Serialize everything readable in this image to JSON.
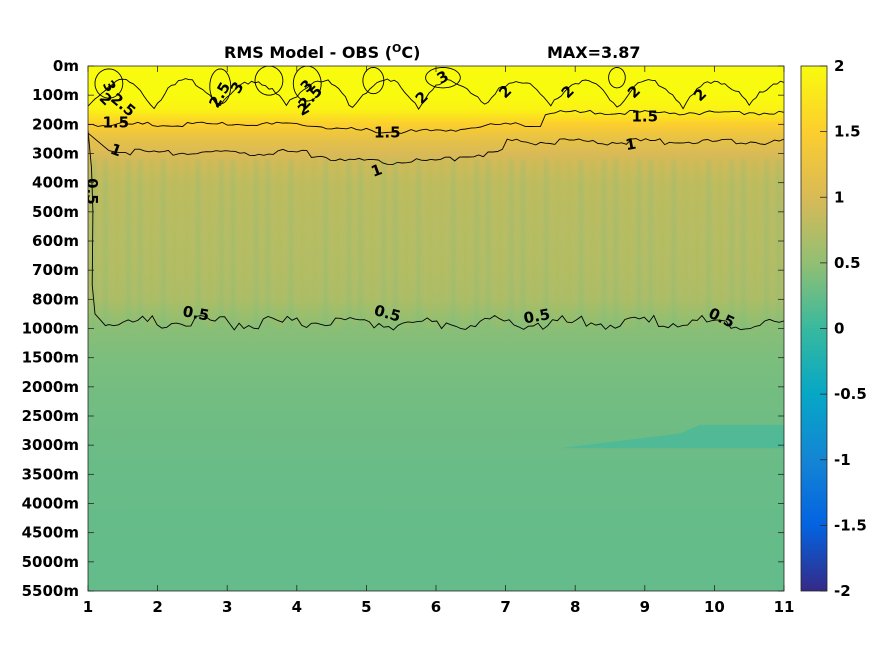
{
  "chart_data": {
    "type": "heatmap",
    "title_prefix": "RMS Model - OBS (",
    "title_unit_sup": "O",
    "title_unit": "C)",
    "title_max": "MAX=3.87",
    "x": {
      "ticks": [
        1,
        2,
        3,
        4,
        5,
        6,
        7,
        8,
        9,
        10,
        11
      ],
      "range": [
        1,
        11
      ]
    },
    "y": {
      "ticks": [
        "0m",
        "100m",
        "200m",
        "300m",
        "400m",
        "500m",
        "600m",
        "700m",
        "800m",
        "1000m",
        "1500m",
        "2000m",
        "2500m",
        "3000m",
        "3500m",
        "4000m",
        "4500m",
        "5000m",
        "5500m"
      ],
      "depths_m": [
        0,
        100,
        200,
        300,
        400,
        500,
        600,
        700,
        800,
        1000,
        1500,
        2000,
        2500,
        3000,
        3500,
        4000,
        4500,
        5000,
        5500
      ],
      "reversed": true
    },
    "colorbar": {
      "range": [
        -2,
        2
      ],
      "ticks": [
        2,
        1.5,
        1,
        0.5,
        0,
        -0.5,
        -1,
        -1.5,
        -2
      ],
      "tick_labels": [
        "2",
        "1.5",
        "1",
        "0.5",
        "0",
        "-0.5",
        "-1",
        "-1.5",
        "-2"
      ],
      "colormap": "parula"
    },
    "rms_profile": {
      "depth_index": [
        0,
        1,
        1.5,
        2,
        2.5,
        3,
        4,
        5,
        6,
        7,
        8,
        8.5,
        9,
        10,
        11,
        12,
        13,
        14,
        15,
        16,
        17,
        18
      ],
      "value": [
        2.8,
        2.3,
        1.9,
        1.5,
        1.2,
        1.0,
        0.82,
        0.78,
        0.75,
        0.73,
        0.68,
        0.55,
        0.45,
        0.38,
        0.34,
        0.31,
        0.29,
        0.27,
        0.26,
        0.25,
        0.24,
        0.24
      ]
    },
    "contour_levels": [
      0.5,
      1,
      1.5,
      2,
      2.5,
      3
    ],
    "contour_labels": [
      {
        "text": "3",
        "x": 1.3,
        "y": 0.7,
        "rot": 60
      },
      {
        "text": "2",
        "x": 1.25,
        "y": 1.15,
        "rot": 45
      },
      {
        "text": "2.5",
        "x": 1.5,
        "y": 1.35,
        "rot": 40
      },
      {
        "text": "1.5",
        "x": 1.4,
        "y": 1.95,
        "rot": 0
      },
      {
        "text": "1",
        "x": 1.4,
        "y": 2.9,
        "rot": 20
      },
      {
        "text": "0.5",
        "x": 1.05,
        "y": 4.3,
        "rot": 90
      },
      {
        "text": "2.5",
        "x": 2.9,
        "y": 1.0,
        "rot": -60
      },
      {
        "text": "3",
        "x": 3.15,
        "y": 0.75,
        "rot": -60
      },
      {
        "text": "2.5",
        "x": 4.2,
        "y": 1.1,
        "rot": -45
      },
      {
        "text": "3",
        "x": 4.15,
        "y": 0.7,
        "rot": -45
      },
      {
        "text": "2",
        "x": 4.1,
        "y": 1.5,
        "rot": -30
      },
      {
        "text": "3",
        "x": 6.1,
        "y": 0.4,
        "rot": -30
      },
      {
        "text": "2",
        "x": 5.8,
        "y": 1.1,
        "rot": -45
      },
      {
        "text": "2",
        "x": 7.0,
        "y": 0.9,
        "rot": -45
      },
      {
        "text": "2",
        "x": 7.9,
        "y": 0.9,
        "rot": -45
      },
      {
        "text": "2",
        "x": 8.85,
        "y": 0.9,
        "rot": -45
      },
      {
        "text": "2",
        "x": 9.8,
        "y": 1.0,
        "rot": -45
      },
      {
        "text": "1.5",
        "x": 5.3,
        "y": 2.3,
        "rot": 0
      },
      {
        "text": "1.5",
        "x": 9.0,
        "y": 1.75,
        "rot": 0
      },
      {
        "text": "1",
        "x": 5.15,
        "y": 3.6,
        "rot": -20
      },
      {
        "text": "1",
        "x": 8.8,
        "y": 2.7,
        "rot": -10
      },
      {
        "text": "0.5",
        "x": 2.55,
        "y": 8.5,
        "rot": 10
      },
      {
        "text": "0.5",
        "x": 5.3,
        "y": 8.5,
        "rot": 15
      },
      {
        "text": "0.5",
        "x": 7.45,
        "y": 8.6,
        "rot": -10
      },
      {
        "text": "0.5",
        "x": 10.1,
        "y": 8.65,
        "rot": 25
      }
    ]
  }
}
